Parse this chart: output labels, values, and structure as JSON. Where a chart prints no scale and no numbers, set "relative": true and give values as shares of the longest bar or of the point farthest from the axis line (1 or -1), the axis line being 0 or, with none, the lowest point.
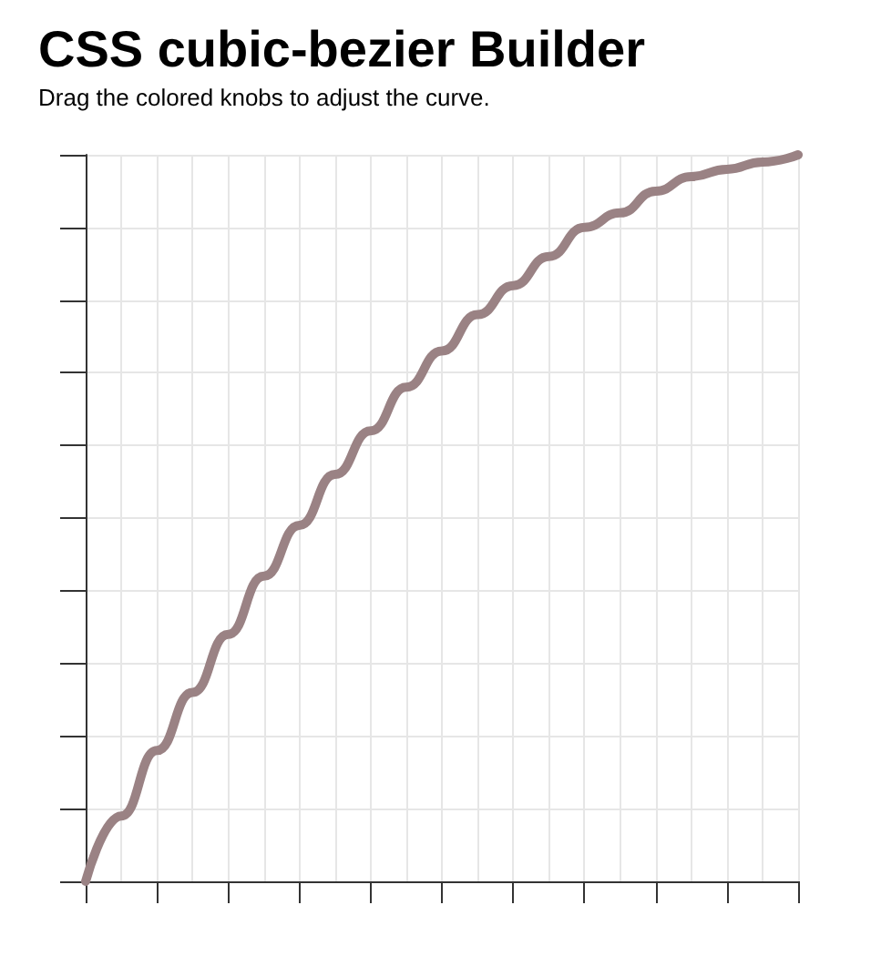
{
  "chart_data": {
    "type": "line",
    "title": "CSS cubic-bezier Builder",
    "subtitle": "Drag the colored knobs to adjust the curve.",
    "relative": true,
    "grid": true,
    "marker": "none",
    "line_style": "solid",
    "categories": [
      null,
      null,
      null,
      null,
      null,
      null,
      null,
      null,
      null,
      null,
      null,
      null,
      null,
      null,
      null,
      null,
      null,
      null,
      null,
      null,
      null
    ],
    "series": [
      {
        "color": "#9a8284",
        "values": [
          0,
          0.09,
          0.18,
          0.26,
          0.34,
          0.42,
          0.49,
          0.56,
          0.62,
          0.68,
          0.73,
          0.78,
          0.82,
          0.86,
          0.9,
          0.92,
          0.95,
          0.97,
          0.98,
          0.99,
          1
        ]
      }
    ]
  }
}
